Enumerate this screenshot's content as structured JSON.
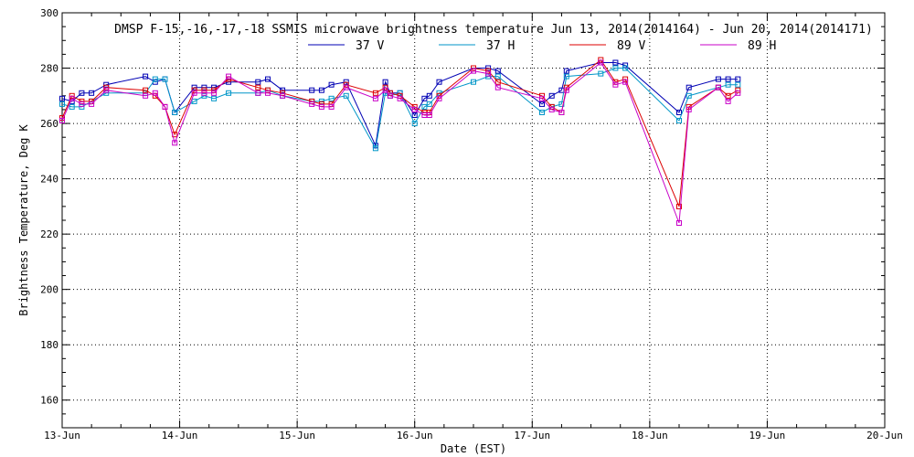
{
  "chart_data": {
    "type": "line",
    "title": "DMSP F-15,-16,-17,-18 SSMIS microwave brightness temperature Jun 13, 2014(2014164) - Jun 20, 2014(2014171)",
    "xlabel": "Date (EST)",
    "ylabel": "Brightness Temperature, Deg K",
    "x_ticks": [
      "13-Jun",
      "14-Jun",
      "15-Jun",
      "16-Jun",
      "17-Jun",
      "18-Jun",
      "19-Jun",
      "20-Jun"
    ],
    "xlim": [
      "2014-06-13 00:00",
      "2014-06-20 00:00"
    ],
    "ylim": [
      150,
      300
    ],
    "y_ticks": [
      160,
      180,
      200,
      220,
      240,
      260,
      280,
      300
    ],
    "grid": true,
    "legend_position": "top-center",
    "series": [
      {
        "name": "37 V",
        "color": "#0000b4",
        "marker": "square",
        "x": [
          "2014-06-13 00:00",
          "2014-06-13 02:00",
          "2014-06-13 04:00",
          "2014-06-13 06:00",
          "2014-06-13 09:00",
          "2014-06-13 17:00",
          "2014-06-13 19:00",
          "2014-06-13 21:00",
          "2014-06-13 23:00",
          "2014-06-14 03:00",
          "2014-06-14 05:00",
          "2014-06-14 07:00",
          "2014-06-14 10:00",
          "2014-06-14 16:00",
          "2014-06-14 18:00",
          "2014-06-14 21:00",
          "2014-06-15 03:00",
          "2014-06-15 05:00",
          "2014-06-15 07:00",
          "2014-06-15 10:00",
          "2014-06-15 16:00",
          "2014-06-15 18:00",
          "2014-06-15 19:00",
          "2014-06-15 21:00",
          "2014-06-16 00:00",
          "2014-06-16 02:00",
          "2014-06-16 03:00",
          "2014-06-16 05:00",
          "2014-06-16 12:00",
          "2014-06-16 15:00",
          "2014-06-16 17:00",
          "2014-06-17 02:00",
          "2014-06-17 04:00",
          "2014-06-17 06:00",
          "2014-06-17 07:00",
          "2014-06-17 14:00",
          "2014-06-17 17:00",
          "2014-06-17 19:00",
          "2014-06-18 06:00",
          "2014-06-18 08:00",
          "2014-06-18 14:00",
          "2014-06-18 16:00",
          "2014-06-18 18:00"
        ],
        "y": [
          269,
          268,
          271,
          271,
          274,
          277,
          275,
          276,
          264,
          273,
          273,
          273,
          275,
          275,
          276,
          272,
          272,
          272,
          274,
          275,
          252,
          275,
          271,
          271,
          263,
          269,
          270,
          275,
          280,
          280,
          279,
          267,
          270,
          272,
          279,
          282,
          282,
          281,
          264,
          273,
          276,
          276,
          276
        ]
      },
      {
        "name": "37 H",
        "color": "#0096c8",
        "marker": "square",
        "x": [
          "2014-06-13 00:00",
          "2014-06-13 02:00",
          "2014-06-13 04:00",
          "2014-06-13 06:00",
          "2014-06-13 09:00",
          "2014-06-13 17:00",
          "2014-06-13 19:00",
          "2014-06-13 21:00",
          "2014-06-13 23:00",
          "2014-06-14 03:00",
          "2014-06-14 05:00",
          "2014-06-14 07:00",
          "2014-06-14 10:00",
          "2014-06-14 16:00",
          "2014-06-14 18:00",
          "2014-06-14 21:00",
          "2014-06-15 03:00",
          "2014-06-15 05:00",
          "2014-06-15 07:00",
          "2014-06-15 10:00",
          "2014-06-15 16:00",
          "2014-06-15 18:00",
          "2014-06-15 19:00",
          "2014-06-15 21:00",
          "2014-06-16 00:00",
          "2014-06-16 02:00",
          "2014-06-16 03:00",
          "2014-06-16 05:00",
          "2014-06-16 12:00",
          "2014-06-16 15:00",
          "2014-06-16 17:00",
          "2014-06-17 02:00",
          "2014-06-17 04:00",
          "2014-06-17 06:00",
          "2014-06-17 07:00",
          "2014-06-17 14:00",
          "2014-06-17 17:00",
          "2014-06-17 19:00",
          "2014-06-18 06:00",
          "2014-06-18 08:00",
          "2014-06-18 14:00",
          "2014-06-18 16:00",
          "2014-06-18 18:00"
        ],
        "y": [
          267,
          266,
          266,
          268,
          271,
          271,
          276,
          276,
          264,
          268,
          270,
          269,
          271,
          271,
          272,
          270,
          268,
          268,
          269,
          270,
          251,
          271,
          270,
          271,
          260,
          266,
          267,
          271,
          275,
          277,
          277,
          264,
          266,
          267,
          277,
          278,
          280,
          280,
          261,
          270,
          273,
          274,
          274
        ]
      },
      {
        "name": "89 V",
        "color": "#dc0000",
        "marker": "square",
        "x": [
          "2014-06-13 00:00",
          "2014-06-13 02:00",
          "2014-06-13 04:00",
          "2014-06-13 06:00",
          "2014-06-13 09:00",
          "2014-06-13 17:00",
          "2014-06-13 19:00",
          "2014-06-13 21:00",
          "2014-06-13 23:00",
          "2014-06-14 03:00",
          "2014-06-14 05:00",
          "2014-06-14 07:00",
          "2014-06-14 10:00",
          "2014-06-14 16:00",
          "2014-06-14 18:00",
          "2014-06-14 21:00",
          "2014-06-15 03:00",
          "2014-06-15 05:00",
          "2014-06-15 07:00",
          "2014-06-15 10:00",
          "2014-06-15 16:00",
          "2014-06-15 18:00",
          "2014-06-15 19:00",
          "2014-06-15 21:00",
          "2014-06-16 00:00",
          "2014-06-16 02:00",
          "2014-06-16 03:00",
          "2014-06-16 05:00",
          "2014-06-16 12:00",
          "2014-06-16 15:00",
          "2014-06-16 17:00",
          "2014-06-17 02:00",
          "2014-06-17 04:00",
          "2014-06-17 06:00",
          "2014-06-17 07:00",
          "2014-06-17 14:00",
          "2014-06-17 17:00",
          "2014-06-17 19:00",
          "2014-06-18 06:00",
          "2014-06-18 08:00",
          "2014-06-18 14:00",
          "2014-06-18 16:00",
          "2014-06-18 18:00"
        ],
        "y": [
          262,
          270,
          268,
          268,
          273,
          272,
          270,
          266,
          256,
          272,
          272,
          272,
          276,
          273,
          272,
          271,
          268,
          267,
          267,
          274,
          271,
          273,
          271,
          270,
          266,
          264,
          264,
          270,
          280,
          279,
          275,
          270,
          266,
          264,
          273,
          283,
          275,
          276,
          230,
          266,
          273,
          270,
          272
        ]
      },
      {
        "name": "89 H",
        "color": "#c800c8",
        "marker": "square",
        "x": [
          "2014-06-13 00:00",
          "2014-06-13 02:00",
          "2014-06-13 04:00",
          "2014-06-13 06:00",
          "2014-06-13 09:00",
          "2014-06-13 17:00",
          "2014-06-13 19:00",
          "2014-06-13 21:00",
          "2014-06-13 23:00",
          "2014-06-14 03:00",
          "2014-06-14 05:00",
          "2014-06-14 07:00",
          "2014-06-14 10:00",
          "2014-06-14 16:00",
          "2014-06-14 18:00",
          "2014-06-14 21:00",
          "2014-06-15 03:00",
          "2014-06-15 05:00",
          "2014-06-15 07:00",
          "2014-06-15 10:00",
          "2014-06-15 16:00",
          "2014-06-15 18:00",
          "2014-06-15 19:00",
          "2014-06-15 21:00",
          "2014-06-16 00:00",
          "2014-06-16 02:00",
          "2014-06-16 03:00",
          "2014-06-16 05:00",
          "2014-06-16 12:00",
          "2014-06-16 15:00",
          "2014-06-16 17:00",
          "2014-06-17 02:00",
          "2014-06-17 04:00",
          "2014-06-17 06:00",
          "2014-06-17 07:00",
          "2014-06-17 14:00",
          "2014-06-17 17:00",
          "2014-06-17 19:00",
          "2014-06-18 06:00",
          "2014-06-18 08:00",
          "2014-06-18 14:00",
          "2014-06-18 16:00",
          "2014-06-18 18:00"
        ],
        "y": [
          261,
          269,
          267,
          267,
          272,
          270,
          271,
          266,
          253,
          271,
          271,
          271,
          277,
          271,
          271,
          270,
          267,
          266,
          266,
          273,
          269,
          272,
          270,
          269,
          265,
          263,
          263,
          269,
          279,
          278,
          273,
          269,
          265,
          264,
          272,
          282,
          274,
          275,
          224,
          265,
          273,
          268,
          271
        ]
      }
    ]
  }
}
